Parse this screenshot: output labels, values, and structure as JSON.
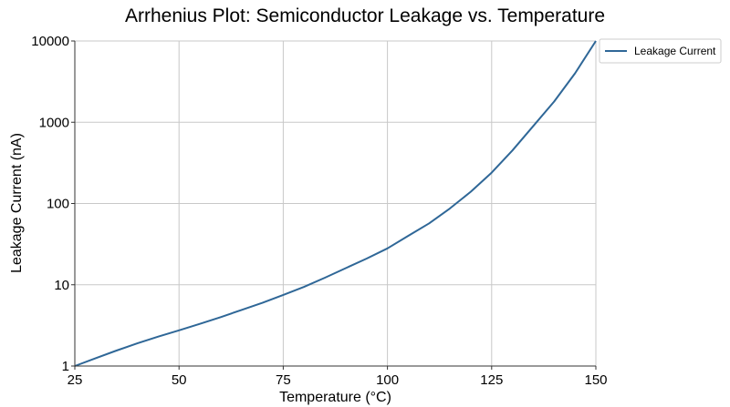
{
  "chart_data": {
    "type": "line",
    "title": "Arrhenius Plot: Semiconductor Leakage vs. Temperature",
    "xlabel": "Temperature (°C)",
    "ylabel": "Leakage Current (nA)",
    "xlim": [
      25,
      150
    ],
    "ylim": [
      1,
      10000
    ],
    "yscale": "log",
    "grid": true,
    "legend_position": "outside-top-right",
    "x_ticks": [
      25,
      50,
      75,
      100,
      125,
      150
    ],
    "x_tick_labels": [
      "25",
      "50",
      "75",
      "100",
      "125",
      "150"
    ],
    "y_ticks": [
      1,
      10,
      100,
      1000,
      10000
    ],
    "y_tick_labels": [
      "1",
      "10",
      "100",
      "1000",
      "10000"
    ],
    "series": [
      {
        "name": "Leakage Current",
        "color": "#2f6797",
        "x": [
          25,
          30,
          35,
          40,
          45,
          50,
          55,
          60,
          65,
          70,
          75,
          80,
          85,
          90,
          95,
          100,
          105,
          110,
          115,
          120,
          125,
          130,
          135,
          140,
          145,
          150
        ],
        "y": [
          1.0,
          1.25,
          1.55,
          1.9,
          2.3,
          2.75,
          3.3,
          4.0,
          4.9,
          6.0,
          7.5,
          9.4,
          12.2,
          16.0,
          21.0,
          28.0,
          40.0,
          57.0,
          87.0,
          140.0,
          240.0,
          450.0,
          900.0,
          1800.0,
          4000.0,
          10000.0
        ]
      }
    ]
  }
}
